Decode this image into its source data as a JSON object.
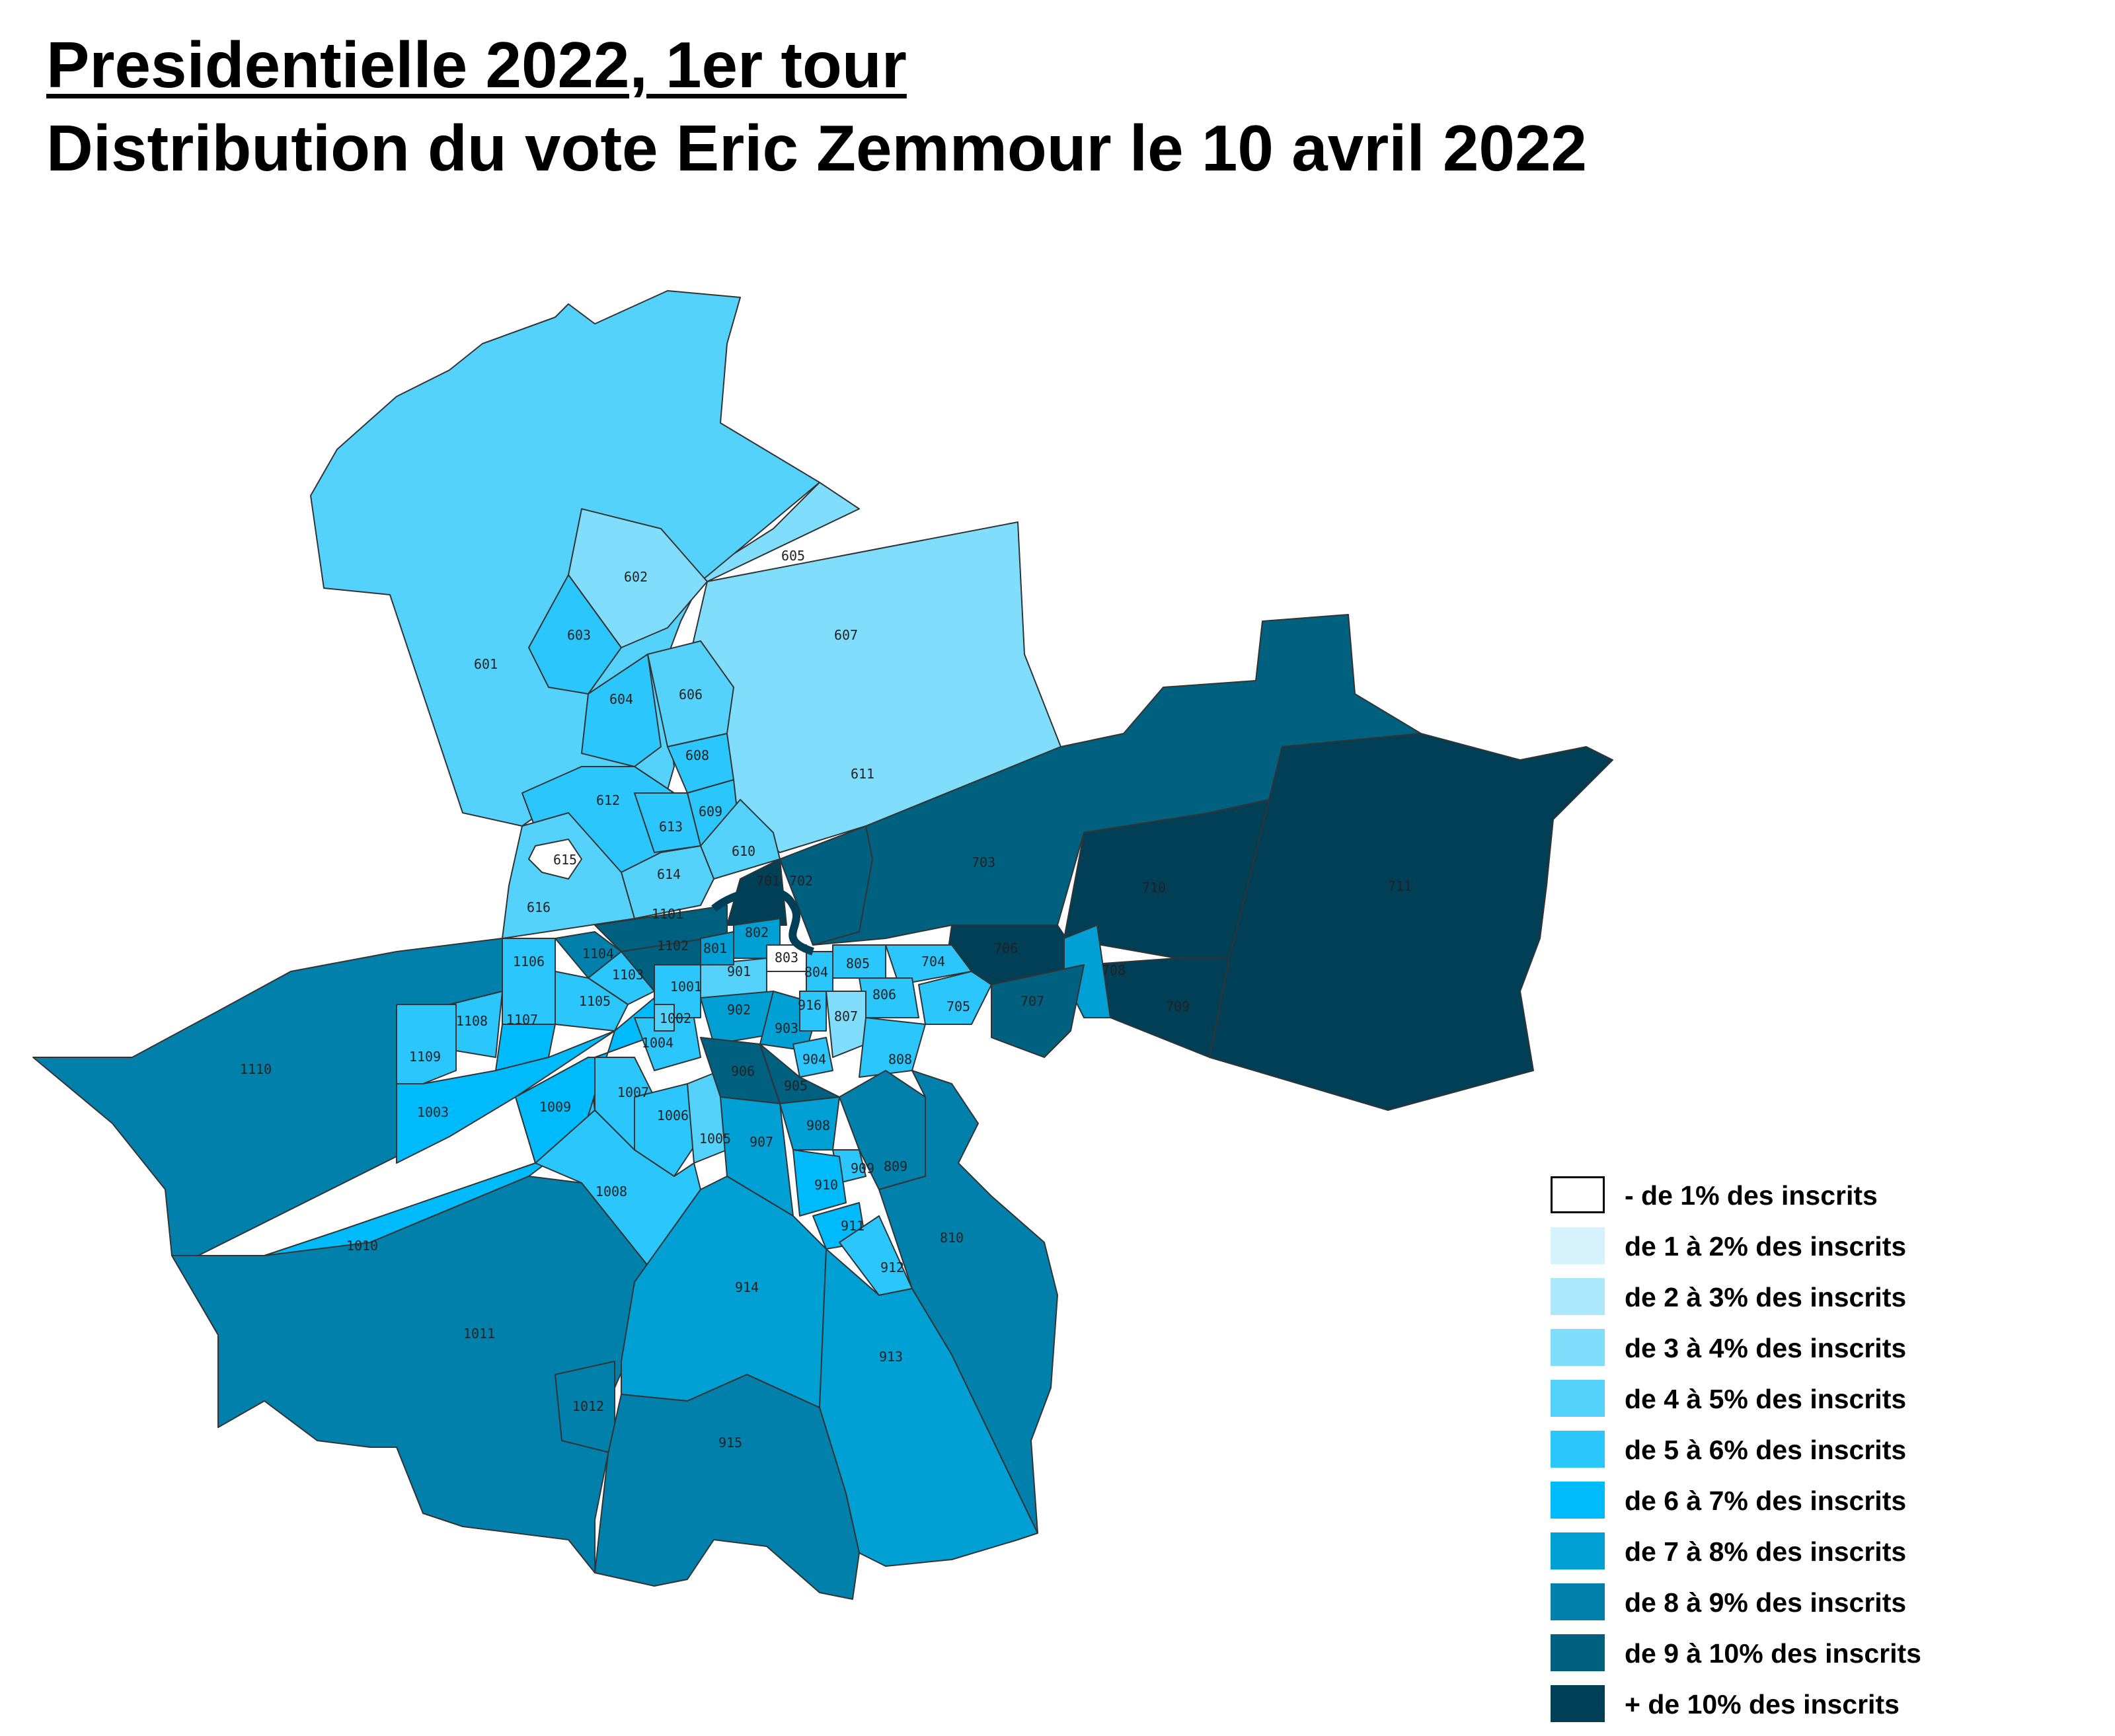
{
  "title": {
    "line1": "Presidentielle 2022, 1er tour",
    "line2": "Distribution du vote Eric Zemmour le 10 avril 2022"
  },
  "legend": [
    {
      "label": "- de 1% des inscrits",
      "color": "#ffffff"
    },
    {
      "label": "de 1 à 2% des inscrits",
      "color": "#d6f3fd"
    },
    {
      "label": "de 2 à 3% des inscrits",
      "color": "#abe8fb"
    },
    {
      "label": "de 3 à 4% des inscrits",
      "color": "#80ddfb"
    },
    {
      "label": "de 4 à 5% des inscrits",
      "color": "#55d2fc"
    },
    {
      "label": "de 5 à 6% des inscrits",
      "color": "#2ac6fc"
    },
    {
      "label": "de 6 à 7% des inscrits",
      "color": "#00bbfb"
    },
    {
      "label": "de 7 à 8% des inscrits",
      "color": "#009fd4"
    },
    {
      "label": "de 8 à 9% des inscrits",
      "color": "#0080ab"
    },
    {
      "label": "de 9 à 10% des inscrits",
      "color": "#006080"
    },
    {
      "label": "+ de 10% des inscrits",
      "color": "#003f56"
    }
  ],
  "bureaux": {
    "601": "601",
    "602": "602",
    "603": "603",
    "604": "604",
    "605": "605",
    "606": "606",
    "607": "607",
    "608": "608",
    "609": "609",
    "610": "610",
    "611": "611",
    "612": "612",
    "613": "613",
    "614": "614",
    "615": "615",
    "616": "616",
    "701": "701",
    "702": "702",
    "703": "703",
    "704": "704",
    "705": "705",
    "706": "706",
    "707": "707",
    "708": "708",
    "709": "709",
    "710": "710",
    "711": "711",
    "801": "801",
    "802": "802",
    "803": "803",
    "804": "804",
    "805": "805",
    "806": "806",
    "807": "807",
    "808": "808",
    "809": "809",
    "810": "810",
    "901": "901",
    "902": "902",
    "903": "903",
    "904": "904",
    "905": "905",
    "906": "906",
    "907": "907",
    "908": "908",
    "909": "909",
    "910": "910",
    "911": "911",
    "912": "912",
    "913": "913",
    "914": "914",
    "915": "915",
    "916": "916",
    "1001": "1001",
    "1002": "1002",
    "1003": "1003",
    "1004": "1004",
    "1005": "1005",
    "1006": "1006",
    "1007": "1007",
    "1008": "1008",
    "1009": "1009",
    "1010": "1010",
    "1011": "1011",
    "1012": "1012",
    "1101": "1101",
    "1102": "1102",
    "1103": "1103",
    "1104": "1104",
    "1105": "1105",
    "1106": "1106",
    "1107": "1107",
    "1108": "1108",
    "1109": "1109",
    "1110": "1110"
  }
}
